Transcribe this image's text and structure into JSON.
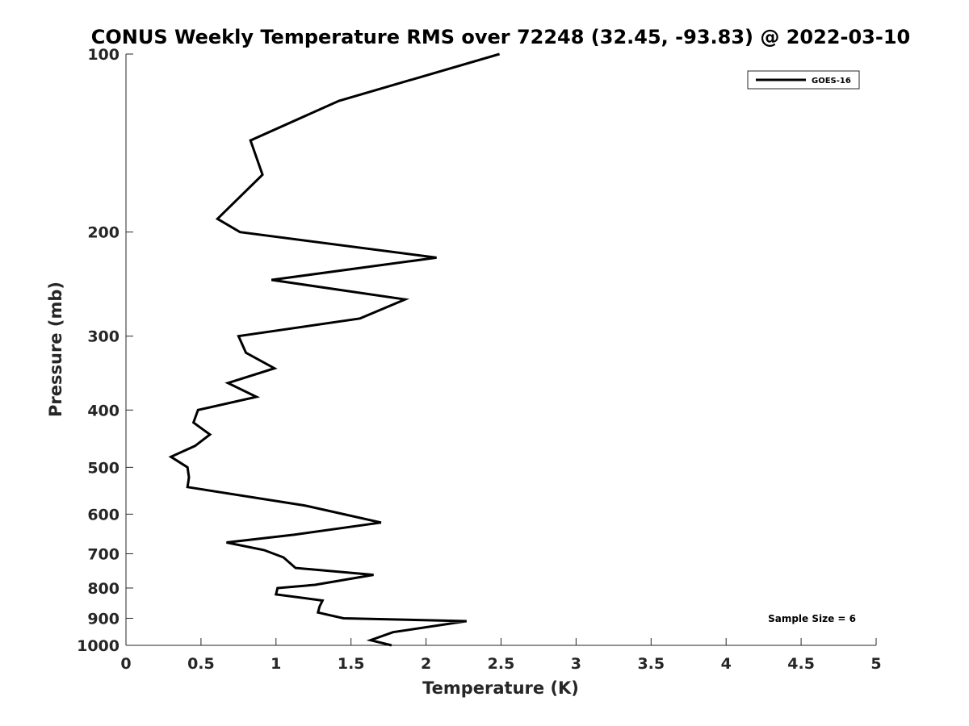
{
  "chart_data": {
    "type": "line",
    "title": "CONUS Weekly Temperature RMS over 72248 (32.45, -93.83) @ 2022-03-10",
    "xlabel": "Temperature (K)",
    "ylabel": "Pressure (mb)",
    "xlim": [
      0,
      5
    ],
    "ylim": [
      100,
      1000
    ],
    "y_scale": "log",
    "y_reversed": true,
    "grid": false,
    "legend_position": "top-right",
    "x_ticks": [
      "0",
      "0.5",
      "1",
      "1.5",
      "2",
      "2.5",
      "3",
      "3.5",
      "4",
      "4.5",
      "5"
    ],
    "y_ticks": [
      "100",
      "200",
      "300",
      "400",
      "500",
      "600",
      "700",
      "800",
      "900",
      "1000"
    ],
    "annotation": "Sample Size = 6",
    "series": [
      {
        "name": "GOES-16",
        "color": "#000000",
        "x": [
          2.49,
          1.42,
          0.83,
          0.91,
          0.61,
          0.76,
          2.07,
          0.97,
          1.86,
          1.56,
          0.75,
          0.8,
          0.99,
          0.68,
          0.87,
          0.48,
          0.45,
          0.56,
          0.46,
          0.3,
          0.41,
          0.42,
          0.41,
          1.19,
          1.45,
          1.7,
          1.12,
          0.67,
          0.92,
          1.05,
          1.13,
          1.65,
          1.26,
          1.01,
          1.0,
          1.31,
          1.29,
          1.28,
          1.45,
          2.27,
          1.78,
          1.63,
          1.77
        ],
        "y": [
          100,
          120,
          140,
          160,
          190,
          200,
          221,
          241,
          260,
          280,
          300,
          320,
          340,
          360,
          380,
          400,
          420,
          440,
          460,
          480,
          500,
          520,
          540,
          580,
          600,
          620,
          650,
          670,
          690,
          710,
          740,
          760,
          790,
          800,
          820,
          840,
          860,
          880,
          900,
          910,
          950,
          980,
          1000
        ]
      }
    ]
  }
}
